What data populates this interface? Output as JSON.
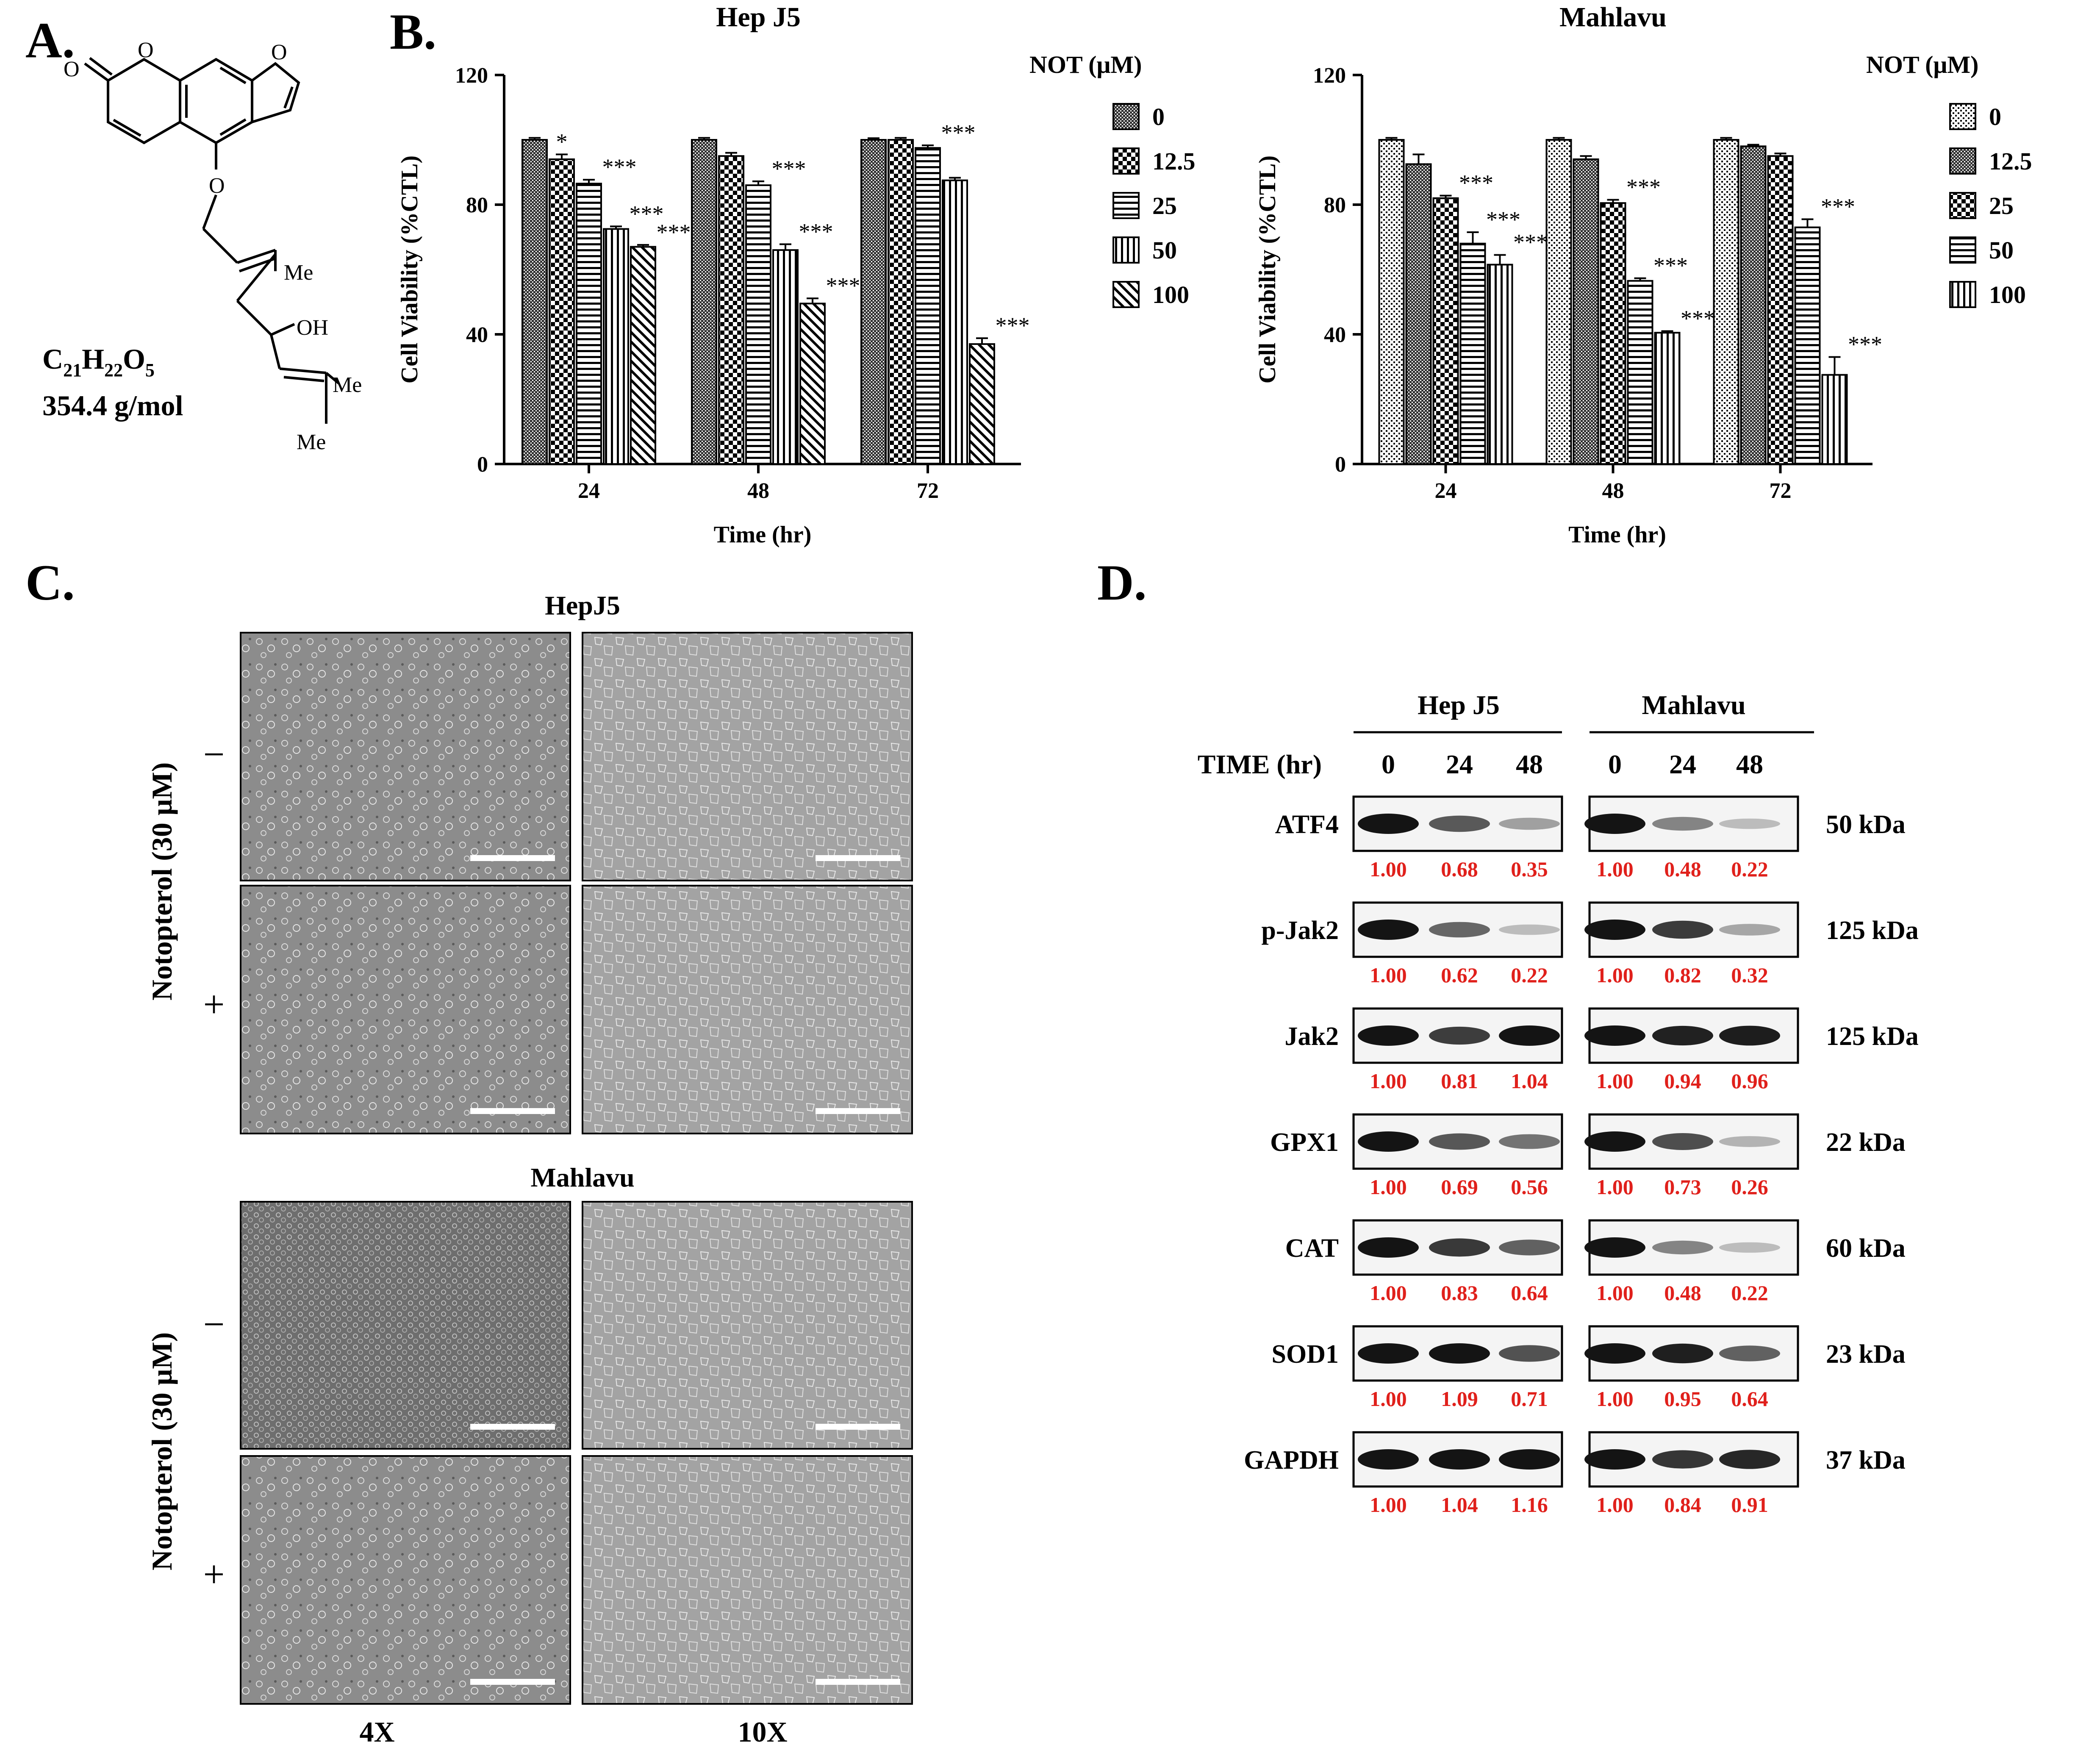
{
  "panel_labels": {
    "a": "A.",
    "b": "B.",
    "c": "C.",
    "d": "D."
  },
  "panel_a": {
    "formula": {
      "c": "C",
      "c_n": "21",
      "h": "H",
      "h_n": "22",
      "o": "O",
      "o_n": "5"
    },
    "mass": "354.4 g/mol",
    "atoms": {
      "o1": "O",
      "o2": "O",
      "o3": "O",
      "o4": "O",
      "oh": "OH",
      "me1": "Me",
      "me2": "Me",
      "me3": "Me"
    }
  },
  "chart_data": [
    {
      "type": "bar",
      "title": "Hep J5",
      "xlabel": "Time (hr)",
      "ylabel": "Cell Viability (%CTL)",
      "ylim": [
        0,
        120
      ],
      "yticks": [
        "0",
        "40",
        "80",
        "120"
      ],
      "categories": [
        "24",
        "48",
        "72"
      ],
      "legend_title": "NOT (μM)",
      "series": [
        {
          "name": "0",
          "values": [
            100,
            100,
            100
          ],
          "errors": [
            0.6,
            0.6,
            0.5
          ],
          "sig": [
            "",
            "",
            ""
          ]
        },
        {
          "name": "12.5",
          "values": [
            94,
            95,
            100
          ],
          "errors": [
            1.5,
            1,
            0.6
          ],
          "sig": [
            "*",
            "",
            ""
          ]
        },
        {
          "name": "25",
          "values": [
            86.5,
            86,
            97.5
          ],
          "errors": [
            1.2,
            1.2,
            0.8
          ],
          "sig": [
            "***",
            "***",
            "***"
          ]
        },
        {
          "name": "50",
          "values": [
            72.5,
            66,
            87.5
          ],
          "errors": [
            0.8,
            1.8,
            0.8
          ],
          "sig": [
            "***",
            "***",
            ""
          ]
        },
        {
          "name": "100",
          "values": [
            67,
            49.5,
            37
          ],
          "errors": [
            0.6,
            1.6,
            1.8
          ],
          "sig": [
            "***",
            "***",
            "***"
          ]
        }
      ]
    },
    {
      "type": "bar",
      "title": "Mahlavu",
      "xlabel": "Time (hr)",
      "ylabel": "Cell Viability (%CTL)",
      "ylim": [
        0,
        120
      ],
      "yticks": [
        "0",
        "40",
        "80",
        "120"
      ],
      "categories": [
        "24",
        "48",
        "72"
      ],
      "legend_title": "NOT (μM)",
      "series": [
        {
          "name": "0",
          "values": [
            100,
            100,
            100
          ],
          "errors": [
            0.6,
            0.6,
            0.6
          ],
          "sig": [
            "",
            "",
            ""
          ]
        },
        {
          "name": "12.5",
          "values": [
            92.5,
            94,
            98
          ],
          "errors": [
            3,
            1,
            0.5
          ],
          "sig": [
            "",
            "",
            ""
          ]
        },
        {
          "name": "25",
          "values": [
            82,
            80.5,
            95
          ],
          "errors": [
            0.8,
            1,
            0.8
          ],
          "sig": [
            "***",
            "***",
            ""
          ]
        },
        {
          "name": "50",
          "values": [
            68,
            56.5,
            73
          ],
          "errors": [
            3.5,
            0.8,
            2.5
          ],
          "sig": [
            "***",
            "***",
            "***"
          ]
        },
        {
          "name": "100",
          "values": [
            61.5,
            40.5,
            27.5
          ],
          "errors": [
            3,
            0.5,
            5.5
          ],
          "sig": [
            "***",
            "***",
            "***"
          ]
        }
      ]
    }
  ],
  "panel_c": {
    "hep_title": "HepJ5",
    "mah_title": "Mahlavu",
    "treatment_label": "Notopterol (30 μM)",
    "minus": "−",
    "plus": "+",
    "mag_4x": "4X",
    "mag_10x": "10X"
  },
  "panel_d": {
    "group1": "Hep J5",
    "group2": "Mahlavu",
    "time_label": "TIME (hr)",
    "times": [
      "0",
      "24",
      "48",
      "0",
      "24",
      "48"
    ],
    "label_color": "#e0201b",
    "rows": [
      {
        "protein": "ATF4",
        "size": "50 kDa",
        "quant": [
          "1.00",
          "0.68",
          "0.35",
          "1.00",
          "0.48",
          "0.22"
        ]
      },
      {
        "protein": "p-Jak2",
        "size": "125 kDa",
        "quant": [
          "1.00",
          "0.62",
          "0.22",
          "1.00",
          "0.82",
          "0.32"
        ]
      },
      {
        "protein": "Jak2",
        "size": "125 kDa",
        "quant": [
          "1.00",
          "0.81",
          "1.04",
          "1.00",
          "0.94",
          "0.96"
        ]
      },
      {
        "protein": "GPX1",
        "size": "22 kDa",
        "quant": [
          "1.00",
          "0.69",
          "0.56",
          "1.00",
          "0.73",
          "0.26"
        ]
      },
      {
        "protein": "CAT",
        "size": "60 kDa",
        "quant": [
          "1.00",
          "0.83",
          "0.64",
          "1.00",
          "0.48",
          "0.22"
        ]
      },
      {
        "protein": "SOD1",
        "size": "23 kDa",
        "quant": [
          "1.00",
          "1.09",
          "0.71",
          "1.00",
          "0.95",
          "0.64"
        ]
      },
      {
        "protein": "GAPDH",
        "size": "37 kDa",
        "quant": [
          "1.00",
          "1.04",
          "1.16",
          "1.00",
          "0.84",
          "0.91"
        ]
      }
    ]
  }
}
